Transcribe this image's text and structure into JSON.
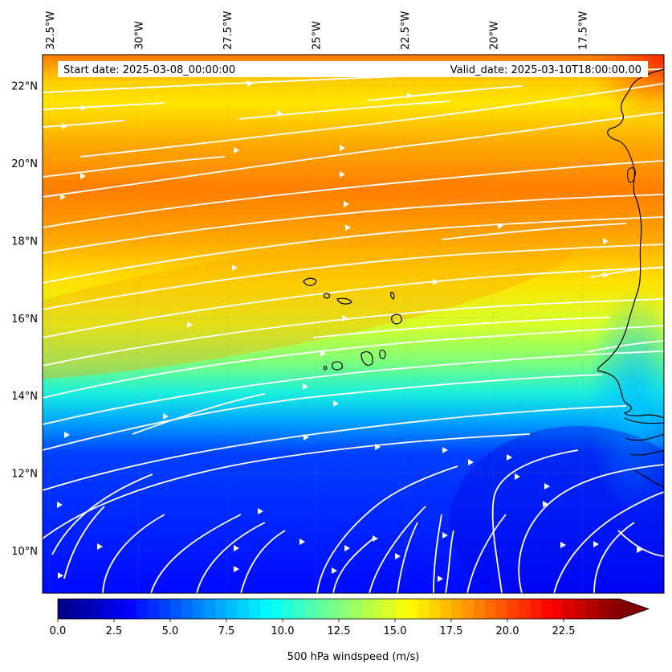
{
  "map": {
    "projection": "PlateCarree",
    "lon_range": [
      -32.7,
      -15.2
    ],
    "lat_range": [
      8.9,
      22.8
    ],
    "field": "500 hPa windspeed (m/s)",
    "colormap": "jet",
    "streamline_color": "#ffffff",
    "coastline_color": "#000000",
    "lon_labels": [
      "32.5°W",
      "30°W",
      "27.5°W",
      "25°W",
      "22.5°W",
      "20°W",
      "17.5°W"
    ],
    "lon_values": [
      -32.5,
      -30,
      -27.5,
      -25,
      -22.5,
      -20,
      -17.5
    ],
    "lat_labels": [
      "10°N",
      "12°N",
      "14°N",
      "16°N",
      "18°N",
      "20°N",
      "22°N"
    ],
    "lat_values": [
      10,
      12,
      14,
      16,
      18,
      20,
      22
    ],
    "start_date": "Start date: 2025-03-08_00:00:00",
    "valid_date": "Valid_date: 2025-03-10T18:00:00.00",
    "places_drawn": [
      "West African coast",
      "Cape Verde islands"
    ]
  },
  "colorbar": {
    "label": "500 hPa windspeed (m/s)",
    "min": 0,
    "max": 25,
    "extend": "max",
    "tick_values": [
      0,
      2.5,
      5,
      7.5,
      10,
      12.5,
      15,
      17.5,
      20,
      22.5
    ],
    "tick_labels": [
      "0.0",
      "2.5",
      "5.0",
      "7.5",
      "10.0",
      "12.5",
      "15.0",
      "17.5",
      "20.0",
      "22.5"
    ]
  }
}
